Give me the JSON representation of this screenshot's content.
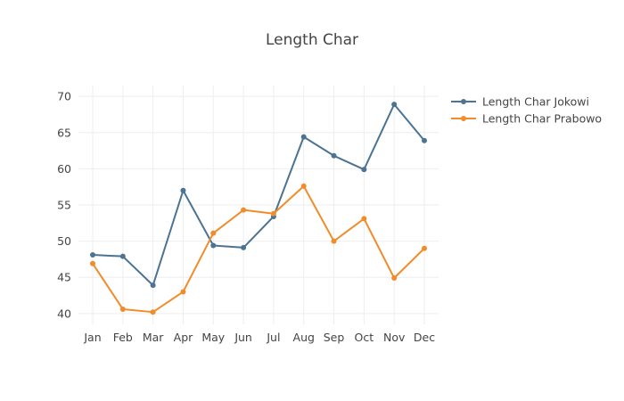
{
  "chart_data": {
    "type": "line",
    "title": "Length Char",
    "xlabel": "",
    "ylabel": "",
    "categories": [
      "Jan",
      "Feb",
      "Mar",
      "Apr",
      "May",
      "Jun",
      "Jul",
      "Aug",
      "Sep",
      "Oct",
      "Nov",
      "Dec"
    ],
    "ylim": [
      38.5,
      71.5
    ],
    "yticks": [
      40,
      45,
      50,
      55,
      60,
      65,
      70
    ],
    "grid": true,
    "legend_position": "top-right",
    "series": [
      {
        "name": "Length Char Jokowi",
        "color": "#4b7394",
        "values": [
          48.1,
          47.9,
          43.9,
          57.0,
          49.4,
          49.1,
          53.4,
          64.4,
          61.8,
          59.9,
          68.9,
          63.9
        ]
      },
      {
        "name": "Length Char Prabowo",
        "color": "#f08c2a",
        "values": [
          46.9,
          40.6,
          40.2,
          43.0,
          51.1,
          54.3,
          53.8,
          57.6,
          50.0,
          53.1,
          44.9,
          49.0
        ]
      }
    ]
  }
}
